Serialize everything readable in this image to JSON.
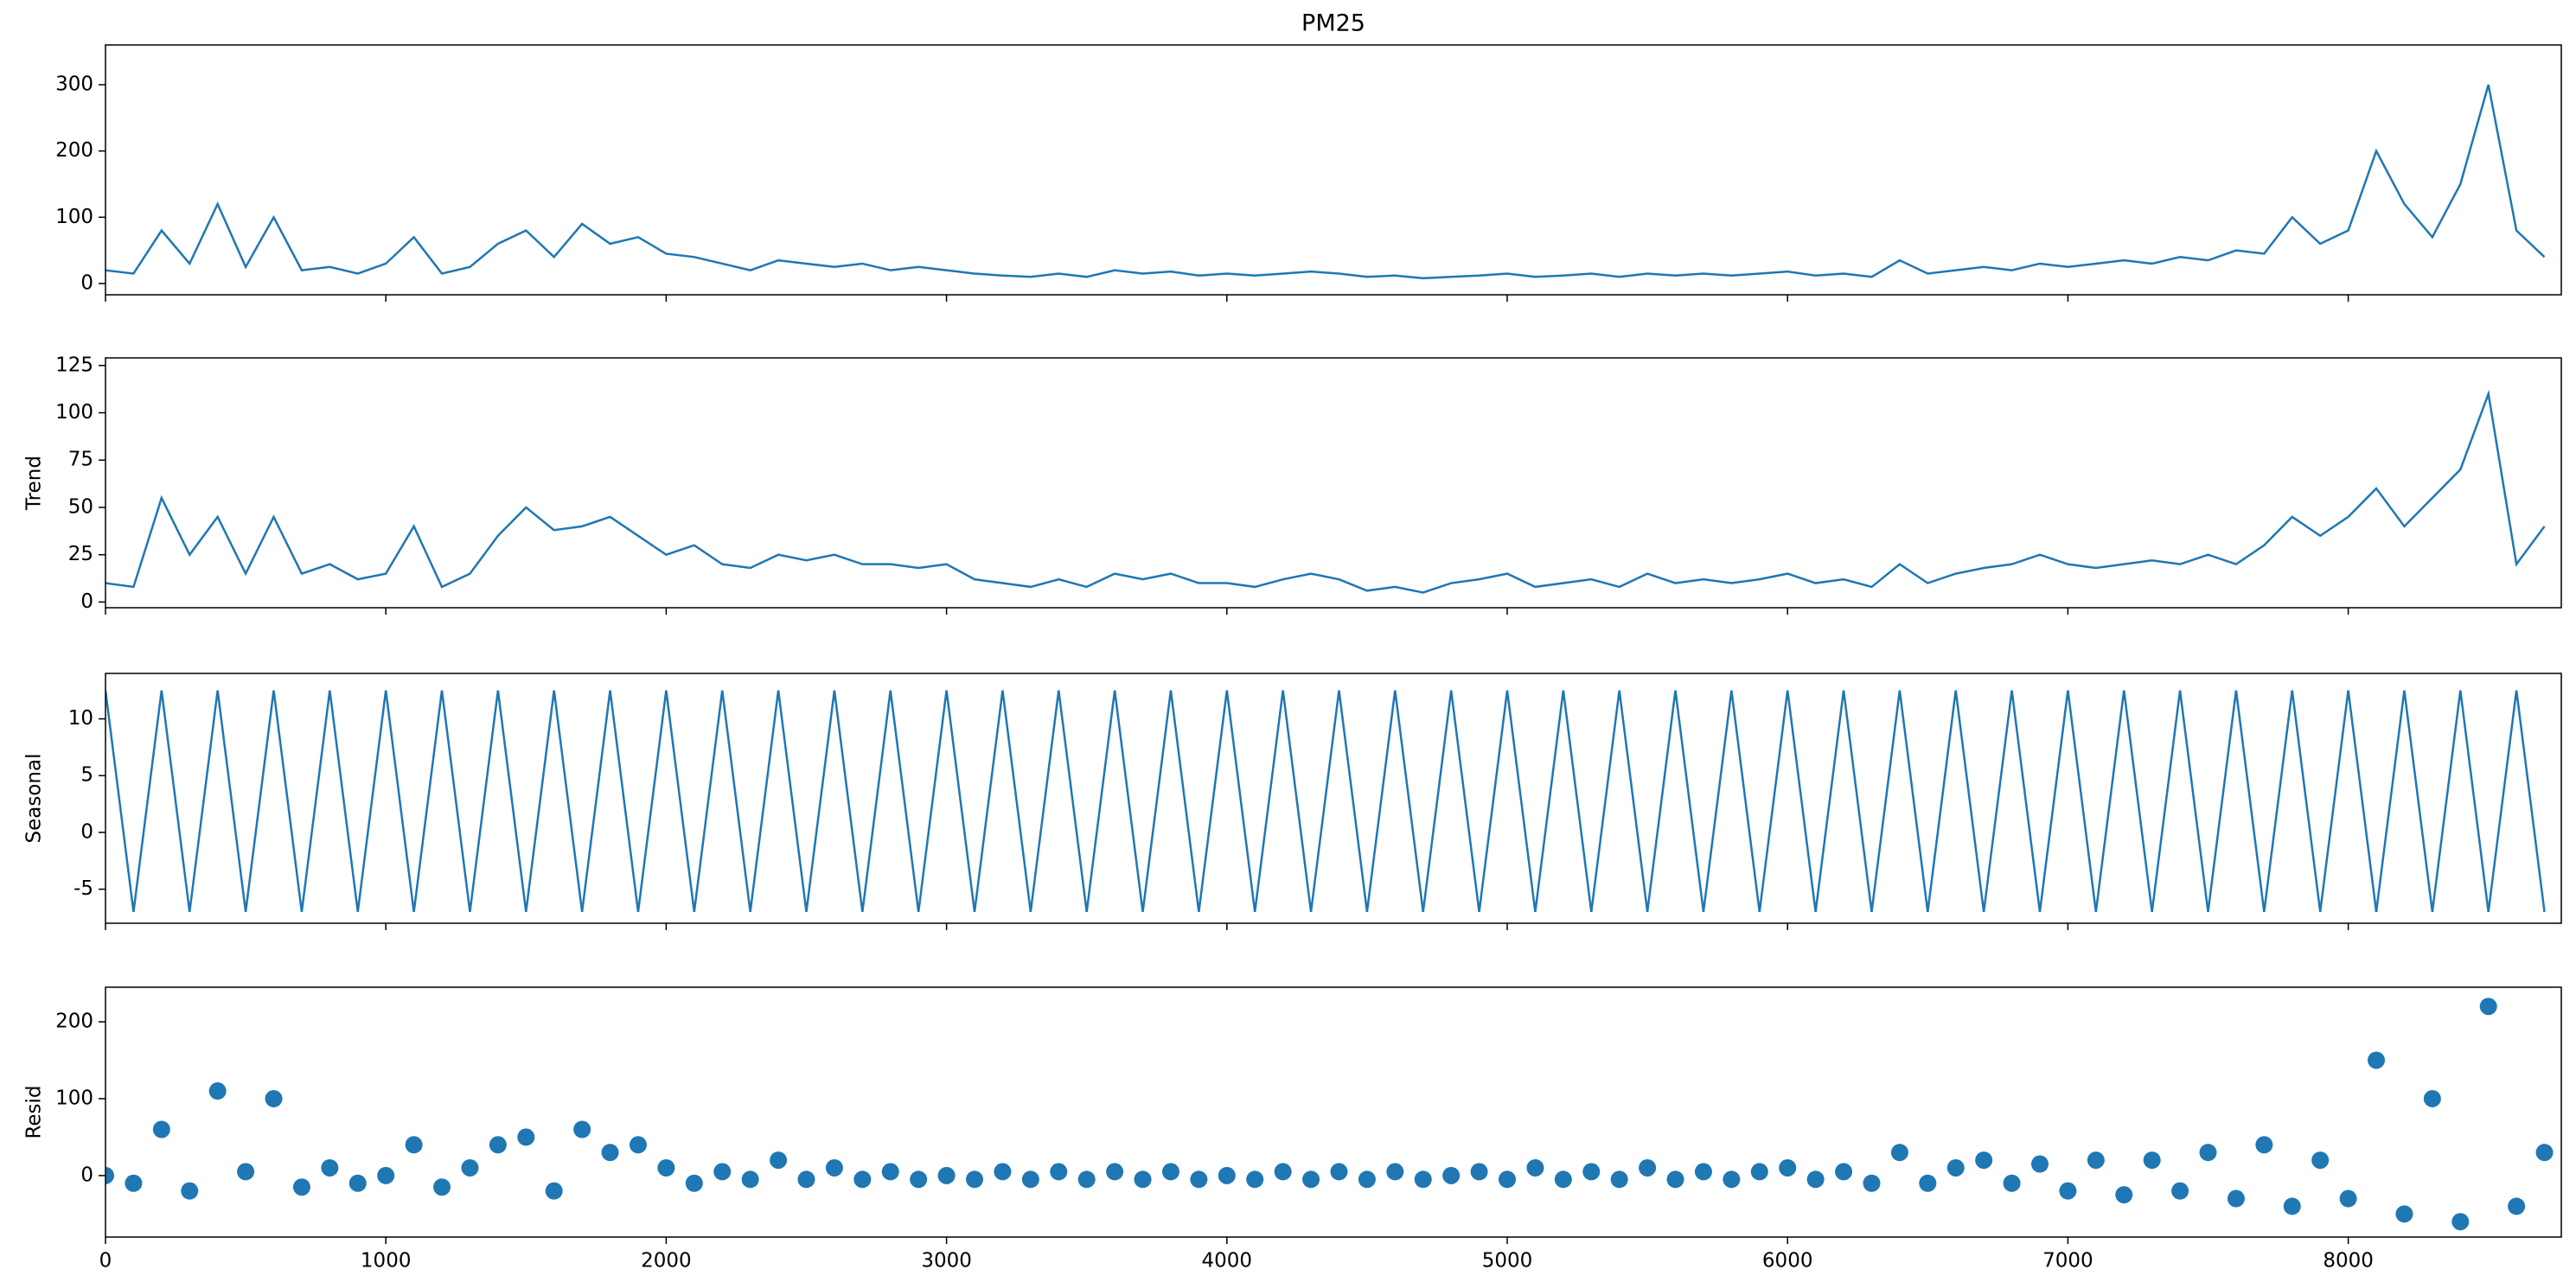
{
  "chart_data": [
    {
      "type": "line",
      "title": "PM25",
      "color": "#1f77b4",
      "x": [
        0,
        100,
        200,
        300,
        400,
        500,
        600,
        700,
        800,
        900,
        1000,
        1100,
        1200,
        1300,
        1400,
        1500,
        1600,
        1700,
        1800,
        1900,
        2000,
        2100,
        2200,
        2300,
        2400,
        2500,
        2600,
        2700,
        2800,
        2900,
        3000,
        3100,
        3200,
        3300,
        3400,
        3500,
        3600,
        3700,
        3800,
        3900,
        4000,
        4100,
        4200,
        4300,
        4400,
        4500,
        4600,
        4700,
        4800,
        4900,
        5000,
        5100,
        5200,
        5300,
        5400,
        5500,
        5600,
        5700,
        5800,
        5900,
        6000,
        6100,
        6200,
        6300,
        6400,
        6500,
        6600,
        6700,
        6800,
        6900,
        7000,
        7100,
        7200,
        7300,
        7400,
        7500,
        7600,
        7700,
        7800,
        7900,
        8000,
        8100,
        8200,
        8300,
        8400,
        8500,
        8600,
        8700
      ],
      "values": [
        20,
        15,
        80,
        30,
        120,
        25,
        100,
        20,
        25,
        15,
        30,
        70,
        15,
        25,
        60,
        80,
        40,
        90,
        60,
        70,
        45,
        40,
        30,
        20,
        35,
        30,
        25,
        30,
        20,
        25,
        20,
        15,
        12,
        10,
        15,
        10,
        20,
        15,
        18,
        12,
        15,
        12,
        15,
        18,
        15,
        10,
        12,
        8,
        10,
        12,
        15,
        10,
        12,
        15,
        10,
        15,
        12,
        15,
        12,
        15,
        18,
        12,
        15,
        10,
        35,
        15,
        20,
        25,
        20,
        30,
        25,
        30,
        35,
        30,
        40,
        35,
        50,
        45,
        100,
        60,
        80,
        200,
        120,
        70,
        150,
        300,
        80,
        40
      ],
      "xlim": [
        0,
        8760
      ],
      "ylim": [
        -17,
        360
      ],
      "yticks": [
        0,
        100,
        200,
        300
      ]
    },
    {
      "type": "line",
      "ylabel": "Trend",
      "color": "#1f77b4",
      "x": [
        0,
        100,
        200,
        300,
        400,
        500,
        600,
        700,
        800,
        900,
        1000,
        1100,
        1200,
        1300,
        1400,
        1500,
        1600,
        1700,
        1800,
        1900,
        2000,
        2100,
        2200,
        2300,
        2400,
        2500,
        2600,
        2700,
        2800,
        2900,
        3000,
        3100,
        3200,
        3300,
        3400,
        3500,
        3600,
        3700,
        3800,
        3900,
        4000,
        4100,
        4200,
        4300,
        4400,
        4500,
        4600,
        4700,
        4800,
        4900,
        5000,
        5100,
        5200,
        5300,
        5400,
        5500,
        5600,
        5700,
        5800,
        5900,
        6000,
        6100,
        6200,
        6300,
        6400,
        6500,
        6600,
        6700,
        6800,
        6900,
        7000,
        7100,
        7200,
        7300,
        7400,
        7500,
        7600,
        7700,
        7800,
        7900,
        8000,
        8100,
        8200,
        8300,
        8400,
        8500,
        8600,
        8700
      ],
      "values": [
        10,
        8,
        55,
        25,
        45,
        15,
        45,
        15,
        20,
        12,
        15,
        40,
        8,
        15,
        35,
        50,
        38,
        40,
        45,
        35,
        25,
        30,
        20,
        18,
        25,
        22,
        25,
        20,
        20,
        18,
        20,
        12,
        10,
        8,
        12,
        8,
        15,
        12,
        15,
        10,
        10,
        8,
        12,
        15,
        12,
        6,
        8,
        5,
        10,
        12,
        15,
        8,
        10,
        12,
        8,
        15,
        10,
        12,
        10,
        12,
        15,
        10,
        12,
        8,
        20,
        10,
        15,
        18,
        20,
        25,
        20,
        18,
        20,
        22,
        20,
        25,
        20,
        30,
        45,
        35,
        45,
        60,
        40,
        55,
        70,
        110,
        20,
        40
      ],
      "xlim": [
        0,
        8760
      ],
      "ylim": [
        -3,
        129
      ],
      "yticks": [
        0,
        25,
        50,
        75,
        100,
        125
      ]
    },
    {
      "type": "line",
      "ylabel": "Seasonal",
      "color": "#1f77b4",
      "x": [
        0,
        100,
        200,
        300,
        400,
        500,
        600,
        700,
        800,
        900,
        1000,
        1100,
        1200,
        1300,
        1400,
        1500,
        1600,
        1700,
        1800,
        1900,
        2000,
        2100,
        2200,
        2300,
        2400,
        2500,
        2600,
        2700,
        2800,
        2900,
        3000,
        3100,
        3200,
        3300,
        3400,
        3500,
        3600,
        3700,
        3800,
        3900,
        4000,
        4100,
        4200,
        4300,
        4400,
        4500,
        4600,
        4700,
        4800,
        4900,
        5000,
        5100,
        5200,
        5300,
        5400,
        5500,
        5600,
        5700,
        5800,
        5900,
        6000,
        6100,
        6200,
        6300,
        6400,
        6500,
        6600,
        6700,
        6800,
        6900,
        7000,
        7100,
        7200,
        7300,
        7400,
        7500,
        7600,
        7700,
        7800,
        7900,
        8000,
        8100,
        8200,
        8300,
        8400,
        8500,
        8600,
        8700
      ],
      "values": [
        12.5,
        -7,
        12.5,
        -7,
        12.5,
        -7,
        12.5,
        -7,
        12.5,
        -7,
        12.5,
        -7,
        12.5,
        -7,
        12.5,
        -7,
        12.5,
        -7,
        12.5,
        -7,
        12.5,
        -7,
        12.5,
        -7,
        12.5,
        -7,
        12.5,
        -7,
        12.5,
        -7,
        12.5,
        -7,
        12.5,
        -7,
        12.5,
        -7,
        12.5,
        -7,
        12.5,
        -7,
        12.5,
        -7,
        12.5,
        -7,
        12.5,
        -7,
        12.5,
        -7,
        12.5,
        -7,
        12.5,
        -7,
        12.5,
        -7,
        12.5,
        -7,
        12.5,
        -7,
        12.5,
        -7,
        12.5,
        -7,
        12.5,
        -7,
        12.5,
        -7,
        12.5,
        -7,
        12.5,
        -7,
        12.5,
        -7,
        12.5,
        -7,
        12.5,
        -7,
        12.5,
        -7,
        12.5,
        -7,
        12.5,
        -7,
        12.5,
        -7,
        12.5,
        -7,
        12.5,
        -7
      ],
      "xlim": [
        0,
        8760
      ],
      "ylim": [
        -8,
        14
      ],
      "yticks": [
        -5,
        0,
        5,
        10
      ]
    },
    {
      "type": "scatter",
      "ylabel": "Resid",
      "color": "#1f77b4",
      "x": [
        0,
        100,
        200,
        300,
        400,
        500,
        600,
        700,
        800,
        900,
        1000,
        1100,
        1200,
        1300,
        1400,
        1500,
        1600,
        1700,
        1800,
        1900,
        2000,
        2100,
        2200,
        2300,
        2400,
        2500,
        2600,
        2700,
        2800,
        2900,
        3000,
        3100,
        3200,
        3300,
        3400,
        3500,
        3600,
        3700,
        3800,
        3900,
        4000,
        4100,
        4200,
        4300,
        4400,
        4500,
        4600,
        4700,
        4800,
        4900,
        5000,
        5100,
        5200,
        5300,
        5400,
        5500,
        5600,
        5700,
        5800,
        5900,
        6000,
        6100,
        6200,
        6300,
        6400,
        6500,
        6600,
        6700,
        6800,
        6900,
        7000,
        7100,
        7200,
        7300,
        7400,
        7500,
        7600,
        7700,
        7800,
        7900,
        8000,
        8100,
        8200,
        8300,
        8400,
        8500,
        8600,
        8700
      ],
      "values": [
        0,
        -10,
        60,
        -20,
        110,
        5,
        100,
        -15,
        10,
        -10,
        0,
        40,
        -15,
        10,
        40,
        50,
        -20,
        60,
        30,
        40,
        10,
        -10,
        5,
        -5,
        20,
        -5,
        10,
        -5,
        5,
        -5,
        0,
        -5,
        5,
        -5,
        5,
        -5,
        5,
        -5,
        5,
        -5,
        0,
        -5,
        5,
        -5,
        5,
        -5,
        5,
        -5,
        0,
        5,
        -5,
        10,
        -5,
        5,
        -5,
        10,
        -5,
        5,
        -5,
        5,
        10,
        -5,
        5,
        -10,
        30,
        -10,
        10,
        20,
        -10,
        15,
        -20,
        20,
        -25,
        20,
        -20,
        30,
        -30,
        40,
        -40,
        20,
        -30,
        150,
        -50,
        100,
        -60,
        220,
        -40,
        30
      ],
      "xlim": [
        0,
        8760
      ],
      "ylim": [
        -80,
        245
      ],
      "yticks": [
        0,
        100,
        200
      ],
      "xticks": [
        0,
        1000,
        2000,
        3000,
        4000,
        5000,
        6000,
        7000,
        8000
      ]
    }
  ]
}
